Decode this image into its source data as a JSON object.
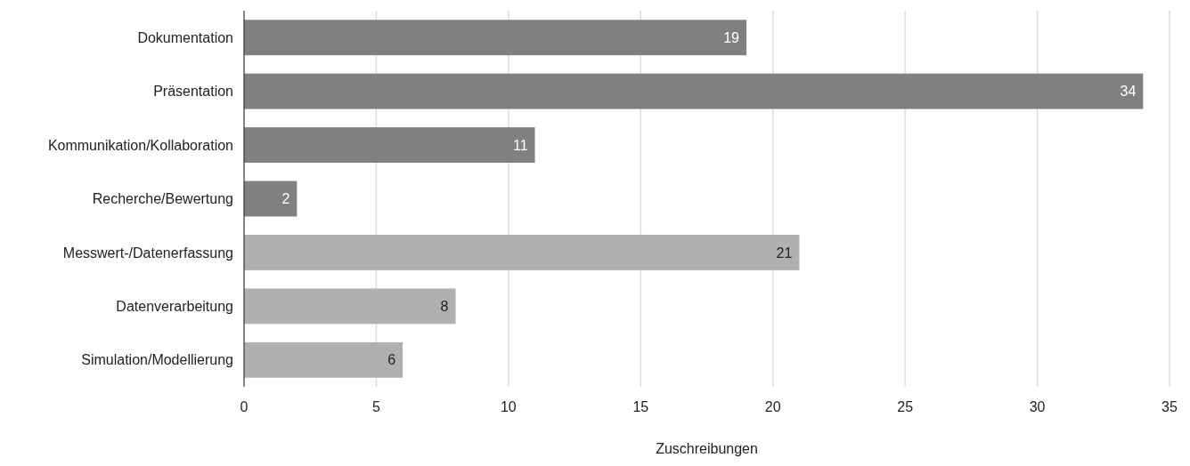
{
  "chart_data": {
    "type": "bar",
    "orientation": "horizontal",
    "categories": [
      "Dokumentation",
      "Präsentation",
      "Kommunikation/Kollaboration",
      "Recherche/Bewertung",
      "Messwert-/Datenerfassung",
      "Datenverarbeitung",
      "Simulation/Modellierung"
    ],
    "values": [
      19,
      34,
      11,
      2,
      21,
      8,
      6
    ],
    "colors": [
      "#808080",
      "#808080",
      "#808080",
      "#808080",
      "#b0b0b0",
      "#b0b0b0",
      "#b0b0b0"
    ],
    "xlim": [
      0,
      35
    ],
    "xticks": [
      0,
      5,
      10,
      15,
      20,
      25,
      30,
      35
    ],
    "xlabel": "Zuschreibungen",
    "grid": "x",
    "data_labels": true
  }
}
